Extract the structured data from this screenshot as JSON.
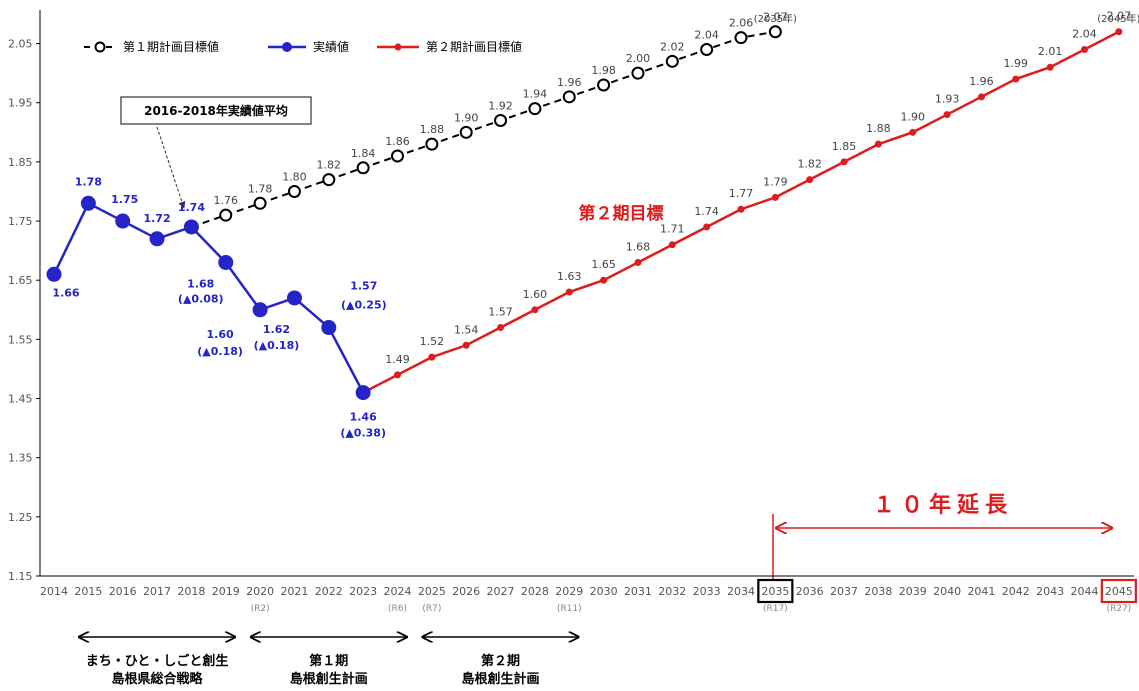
{
  "chart_data": {
    "type": "line",
    "ylim": [
      1.15,
      2.1
    ],
    "yticks": [
      "1.15",
      "1.25",
      "1.35",
      "1.45",
      "1.55",
      "1.65",
      "1.75",
      "1.85",
      "1.95",
      "2.05"
    ],
    "x_ticks": [
      "2014",
      "2015",
      "2016",
      "2017",
      "2018",
      "2019",
      "2020",
      "2021",
      "2022",
      "2023",
      "2024",
      "2025",
      "2026",
      "2027",
      "2028",
      "2029",
      "2030",
      "2031",
      "2032",
      "2033",
      "2034",
      "2035",
      "2036",
      "2037",
      "2038",
      "2039",
      "2040",
      "2041",
      "2042",
      "2043",
      "2044",
      "2045"
    ],
    "sub_ticks": [
      {
        "x": 2020,
        "text": "(R2)"
      },
      {
        "x": 2024,
        "text": "(R6)"
      },
      {
        "x": 2025,
        "text": "(R7)"
      },
      {
        "x": 2029,
        "text": "(R11)"
      },
      {
        "x": 2035,
        "text": "(R17)"
      },
      {
        "x": 2045,
        "text": "(R27)"
      }
    ],
    "boxed_ticks": [
      {
        "x": 2035,
        "color": "#000000"
      },
      {
        "x": 2045,
        "color": "#dd1c1c"
      }
    ],
    "series": [
      {
        "name": "第１期計画目標値",
        "style": "dashed-open-circle",
        "color": "#000000",
        "x": [
          2018,
          2019,
          2020,
          2021,
          2022,
          2023,
          2024,
          2025,
          2026,
          2027,
          2028,
          2029,
          2030,
          2031,
          2032,
          2033,
          2034,
          2035
        ],
        "values": [
          1.74,
          1.76,
          1.78,
          1.8,
          1.82,
          1.84,
          1.86,
          1.88,
          1.9,
          1.92,
          1.94,
          1.96,
          1.98,
          2.0,
          2.02,
          2.04,
          2.06,
          2.07
        ],
        "labels": [
          "",
          "1.76",
          "1.78",
          "1.80",
          "1.82",
          "1.84",
          "1.86",
          "1.88",
          "1.90",
          "1.92",
          "1.94",
          "1.96",
          "1.98",
          "2.00",
          "2.02",
          "2.04",
          "2.06",
          "2.07"
        ]
      },
      {
        "name": "実績値",
        "style": "solid-filled-circle",
        "color": "#2424c8",
        "x": [
          2014,
          2015,
          2016,
          2017,
          2018,
          2019,
          2020,
          2021,
          2022,
          2023
        ],
        "values": [
          1.66,
          1.78,
          1.75,
          1.72,
          1.74,
          1.68,
          1.6,
          1.62,
          1.57,
          1.46
        ],
        "labels": [
          "1.66",
          "1.78",
          "1.75",
          "1.72",
          "1.74",
          "1.68",
          "1.60",
          "1.62",
          "1.57",
          "1.46"
        ],
        "sublabels": [
          "",
          "",
          "",
          "",
          "",
          "(▲0.08)",
          "(▲0.18)",
          "(▲0.18)",
          "(▲0.25)",
          "(▲0.38)"
        ]
      },
      {
        "name": "第２期計画目標値",
        "style": "solid-small-dot",
        "color": "#dd1c1c",
        "x": [
          2023,
          2024,
          2025,
          2026,
          2027,
          2028,
          2029,
          2030,
          2031,
          2032,
          2033,
          2034,
          2035,
          2036,
          2037,
          2038,
          2039,
          2040,
          2041,
          2042,
          2043,
          2044,
          2045
        ],
        "values": [
          1.46,
          1.49,
          1.52,
          1.54,
          1.57,
          1.6,
          1.63,
          1.65,
          1.68,
          1.71,
          1.74,
          1.77,
          1.79,
          1.82,
          1.85,
          1.88,
          1.9,
          1.93,
          1.96,
          1.99,
          2.01,
          2.04,
          2.07
        ],
        "labels": [
          "",
          "1.49",
          "1.52",
          "1.54",
          "1.57",
          "1.60",
          "1.63",
          "1.65",
          "1.68",
          "1.71",
          "1.74",
          "1.77",
          "1.79",
          "1.82",
          "1.85",
          "1.88",
          "1.90",
          "1.93",
          "1.96",
          "1.99",
          "2.01",
          "2.04",
          "2.07"
        ]
      }
    ],
    "year_notes": [
      {
        "x": 2035,
        "text": "(2035年)"
      },
      {
        "x": 2045,
        "text": "(2045年)"
      }
    ],
    "annotations": {
      "callout": "2016-2018年実績値平均",
      "target2": "第２期目標",
      "extension": "１０年延長"
    },
    "eras": [
      {
        "from": 2014.5,
        "to": 2019.5,
        "line1": "まち・ひと・しごと創生",
        "line2": "島根県総合戦略"
      },
      {
        "from": 2019.5,
        "to": 2024.5,
        "line1": "第１期",
        "line2": "島根創生計画"
      },
      {
        "from": 2024.5,
        "to": 2029.5,
        "line1": "第２期",
        "line2": "島根創生計画"
      }
    ],
    "legend_position": "top-left",
    "grid": false
  }
}
